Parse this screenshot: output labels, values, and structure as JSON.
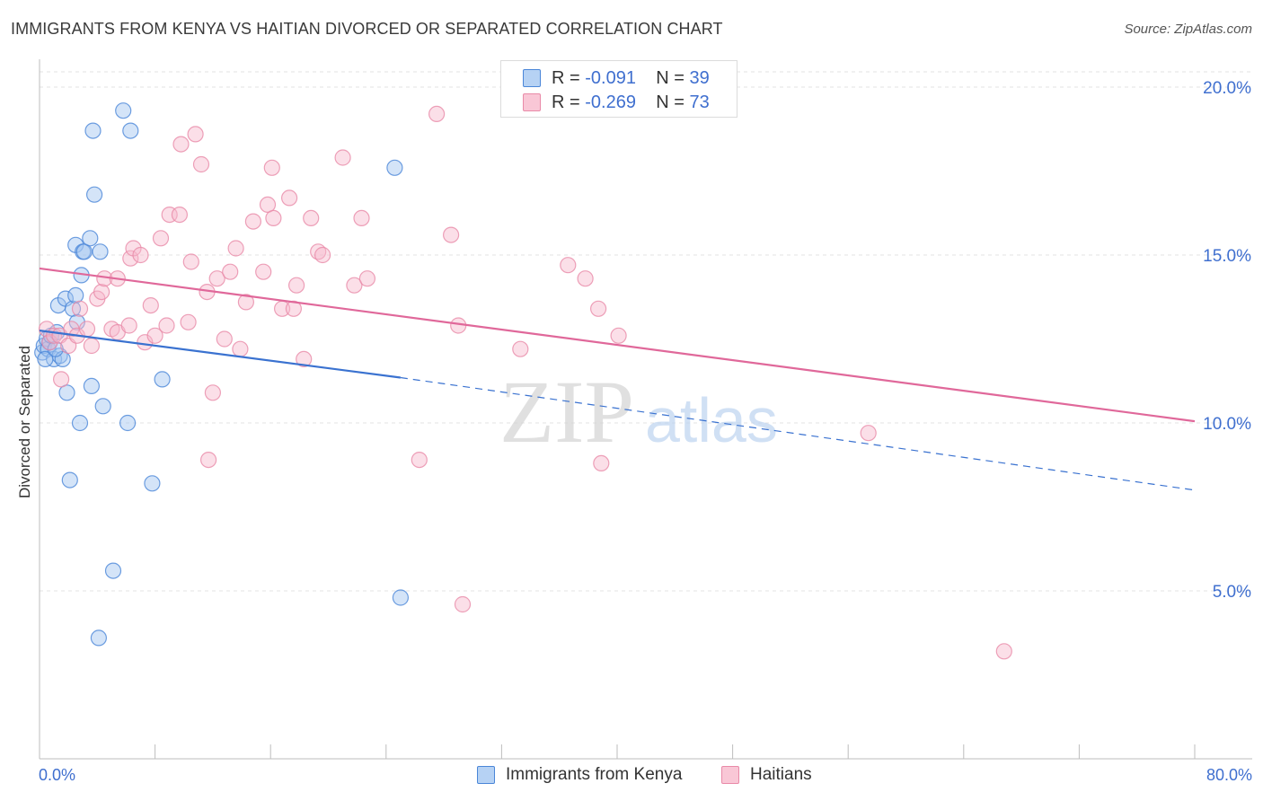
{
  "header": {
    "title": "IMMIGRANTS FROM KENYA VS HAITIAN DIVORCED OR SEPARATED CORRELATION CHART",
    "source": "Source: ZipAtlas.com"
  },
  "watermark": {
    "zip": "ZIP",
    "atlas": "atlas"
  },
  "legend_stats": [
    {
      "r_label": "R =",
      "r_value": "-0.091",
      "n_label": "N =",
      "n_value": "39"
    },
    {
      "r_label": "R =",
      "r_value": "-0.269",
      "n_label": "N =",
      "n_value": "73"
    }
  ],
  "colors": {
    "kenya_fill": "#9fc3f0",
    "kenya_stroke": "#4a86d8",
    "kenya_line": "#3a72d0",
    "haiti_fill": "#f7b8cb",
    "haiti_stroke": "#e98aa8",
    "haiti_line": "#e0689a",
    "tick_text": "#3f6fcf",
    "grid": "#e3e3e3"
  },
  "chart_data": {
    "type": "scatter",
    "title": "IMMIGRANTS FROM KENYA VS HAITIAN DIVORCED OR SEPARATED CORRELATION CHART",
    "xlabel": "",
    "ylabel": "Divorced or Separated",
    "xlim": [
      0,
      80
    ],
    "ylim": [
      0,
      20.5
    ],
    "x_tick_labels": [
      "0.0%",
      "80.0%"
    ],
    "y_ticks": [
      5,
      10,
      15,
      20
    ],
    "y_tick_labels": [
      "5.0%",
      "10.0%",
      "15.0%",
      "20.0%"
    ],
    "grid": true,
    "legend_position": "bottom",
    "series": [
      {
        "name": "Immigrants from Kenya",
        "points": [
          [
            0.2,
            12.1
          ],
          [
            0.3,
            12.3
          ],
          [
            0.5,
            12.5
          ],
          [
            0.6,
            12.2
          ],
          [
            0.7,
            12.4
          ],
          [
            0.8,
            12.6
          ],
          [
            1.0,
            11.9
          ],
          [
            1.2,
            12.7
          ],
          [
            1.4,
            12.0
          ],
          [
            1.6,
            11.9
          ],
          [
            1.3,
            13.5
          ],
          [
            1.8,
            13.7
          ],
          [
            2.3,
            13.4
          ],
          [
            2.5,
            13.8
          ],
          [
            2.6,
            13.0
          ],
          [
            2.5,
            15.3
          ],
          [
            2.9,
            14.4
          ],
          [
            3.0,
            15.1
          ],
          [
            3.1,
            15.1
          ],
          [
            3.5,
            15.5
          ],
          [
            4.2,
            15.1
          ],
          [
            3.8,
            16.8
          ],
          [
            3.7,
            18.7
          ],
          [
            5.8,
            19.3
          ],
          [
            6.3,
            18.7
          ],
          [
            24.6,
            17.6
          ],
          [
            1.9,
            10.9
          ],
          [
            2.8,
            10.0
          ],
          [
            3.6,
            11.1
          ],
          [
            4.4,
            10.5
          ],
          [
            6.1,
            10.0
          ],
          [
            8.5,
            11.3
          ],
          [
            2.1,
            8.3
          ],
          [
            7.8,
            8.2
          ],
          [
            5.1,
            5.6
          ],
          [
            4.1,
            3.6
          ],
          [
            25.0,
            4.8
          ],
          [
            0.4,
            11.9
          ],
          [
            1.1,
            12.2
          ]
        ]
      },
      {
        "name": "Haitians",
        "points": [
          [
            0.5,
            12.8
          ],
          [
            0.7,
            12.4
          ],
          [
            1.0,
            12.6
          ],
          [
            1.4,
            12.6
          ],
          [
            1.5,
            11.3
          ],
          [
            2.0,
            12.3
          ],
          [
            2.2,
            12.8
          ],
          [
            2.6,
            12.6
          ],
          [
            2.8,
            13.4
          ],
          [
            3.3,
            12.8
          ],
          [
            3.6,
            12.3
          ],
          [
            4.0,
            13.7
          ],
          [
            4.3,
            13.9
          ],
          [
            4.5,
            14.3
          ],
          [
            5.0,
            12.8
          ],
          [
            5.4,
            12.7
          ],
          [
            5.4,
            14.3
          ],
          [
            6.2,
            12.9
          ],
          [
            6.3,
            14.9
          ],
          [
            6.5,
            15.2
          ],
          [
            7.0,
            15.0
          ],
          [
            7.3,
            12.4
          ],
          [
            7.7,
            13.5
          ],
          [
            8.0,
            12.6
          ],
          [
            8.4,
            15.5
          ],
          [
            8.8,
            12.9
          ],
          [
            9.0,
            16.2
          ],
          [
            9.7,
            16.2
          ],
          [
            9.8,
            18.3
          ],
          [
            10.3,
            13.0
          ],
          [
            10.5,
            14.8
          ],
          [
            10.8,
            18.6
          ],
          [
            11.2,
            17.7
          ],
          [
            11.6,
            13.9
          ],
          [
            12.0,
            10.9
          ],
          [
            11.7,
            8.9
          ],
          [
            12.3,
            14.3
          ],
          [
            12.8,
            12.5
          ],
          [
            13.2,
            14.5
          ],
          [
            13.6,
            15.2
          ],
          [
            13.9,
            12.2
          ],
          [
            14.3,
            13.6
          ],
          [
            14.8,
            16.0
          ],
          [
            15.5,
            14.5
          ],
          [
            15.8,
            16.5
          ],
          [
            16.1,
            17.6
          ],
          [
            16.2,
            16.1
          ],
          [
            16.8,
            13.4
          ],
          [
            17.3,
            16.7
          ],
          [
            17.6,
            13.4
          ],
          [
            17.8,
            14.1
          ],
          [
            18.3,
            11.9
          ],
          [
            18.8,
            16.1
          ],
          [
            19.3,
            15.1
          ],
          [
            19.6,
            15.0
          ],
          [
            21.0,
            17.9
          ],
          [
            21.8,
            14.1
          ],
          [
            22.3,
            16.1
          ],
          [
            22.7,
            14.3
          ],
          [
            26.3,
            8.9
          ],
          [
            27.5,
            19.2
          ],
          [
            28.5,
            15.6
          ],
          [
            29.0,
            12.9
          ],
          [
            29.3,
            4.6
          ],
          [
            32.6,
            20.0
          ],
          [
            33.3,
            12.2
          ],
          [
            36.6,
            14.7
          ],
          [
            37.8,
            14.3
          ],
          [
            38.7,
            13.4
          ],
          [
            38.9,
            8.8
          ],
          [
            40.1,
            12.6
          ],
          [
            57.4,
            9.7
          ],
          [
            66.8,
            3.2
          ]
        ]
      }
    ],
    "trend_lines": [
      {
        "series": "Immigrants from Kenya",
        "x": [
          0.0,
          25.0
        ],
        "y": [
          12.75,
          11.35
        ],
        "style": "solid",
        "extension": {
          "x": [
            25.0,
            80.0
          ],
          "y": [
            11.35,
            8.0
          ],
          "style": "dashed"
        }
      },
      {
        "series": "Haitians",
        "x": [
          0.0,
          80.0
        ],
        "y": [
          14.6,
          10.05
        ],
        "style": "solid"
      }
    ]
  }
}
